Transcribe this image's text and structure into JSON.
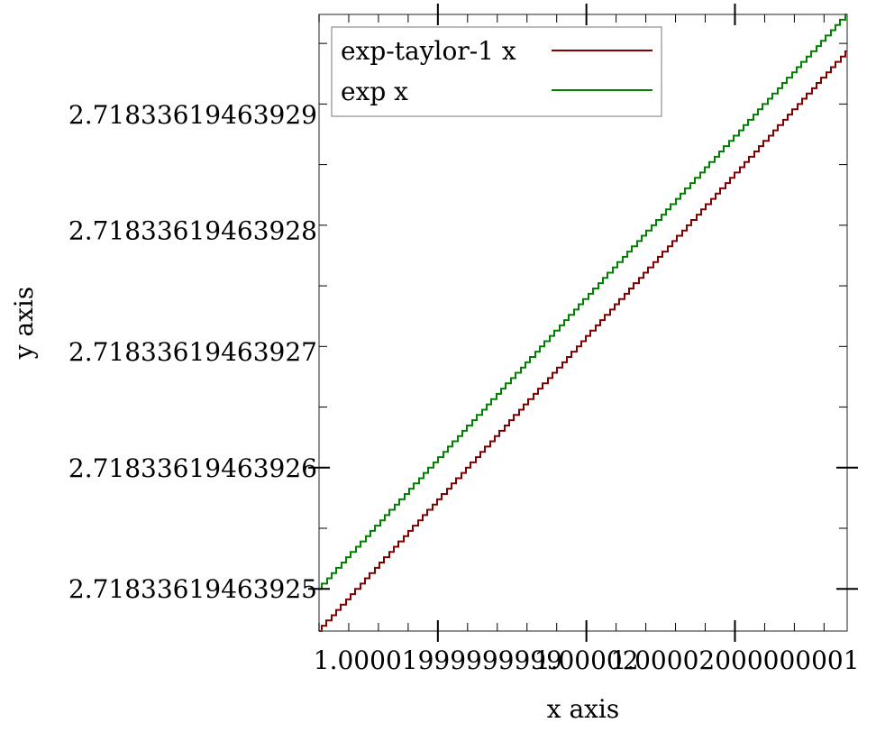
{
  "chart_data": {
    "type": "line",
    "title": "",
    "xlabel": "x axis",
    "ylabel": "y axis",
    "xlim": [
      1.000019999999982,
      1.0000200000000175
    ],
    "ylim": [
      2.7183361946392464,
      2.7183361946392983
    ],
    "x_ticks": [
      {
        "value": 1.00001999999999,
        "label": "1.00001999999999"
      },
      {
        "value": 1.00002,
        "label": "1.00002"
      },
      {
        "value": 1.00002000000001,
        "label": "1.00002000000001"
      }
    ],
    "y_ticks": [
      {
        "value": 2.71833619463925,
        "label": "2.71833619463925"
      },
      {
        "value": 2.71833619463926,
        "label": "2.71833619463926"
      },
      {
        "value": 2.71833619463927,
        "label": "2.71833619463927"
      },
      {
        "value": 2.71833619463928,
        "label": "2.71833619463928"
      },
      {
        "value": 2.71833619463929,
        "label": "2.71833619463929"
      }
    ],
    "y_step": 4.440892098500626e-16,
    "grid": false,
    "legend_position": "top-left",
    "series": [
      {
        "name": "exp-taylor-1 x",
        "color": "#800000",
        "points": [
          [
            1.000019999999982,
            2.7183361946392464
          ],
          [
            1.0000200000000175,
            2.718336194639295
          ]
        ]
      },
      {
        "name": "exp x",
        "color": "#008000",
        "points": [
          [
            1.000019999999982,
            2.71833619463925
          ],
          [
            1.0000200000000175,
            2.7183361946392983
          ]
        ]
      }
    ]
  }
}
